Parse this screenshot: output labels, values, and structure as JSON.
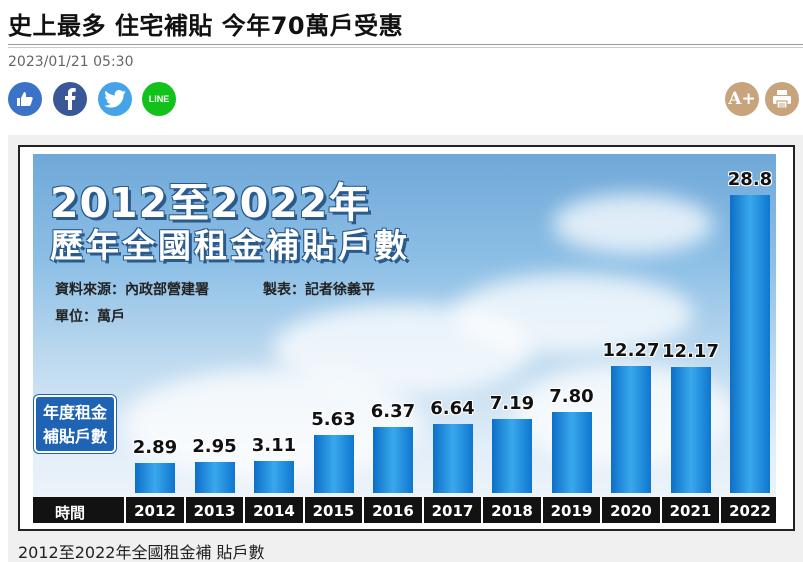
{
  "article": {
    "headline": "史上最多 住宅補貼 今年70萬戶受惠",
    "timestamp": "2023/01/21 05:30",
    "caption": "2012至2022年全國租金補 貼戶數"
  },
  "share": {
    "line_label": "LINE",
    "icons": [
      "like-icon",
      "facebook-icon",
      "twitter-icon",
      "line-icon"
    ]
  },
  "tools": {
    "font_size_label": "A+",
    "icons": [
      "font-size-icon",
      "print-icon"
    ]
  },
  "colors": {
    "share_like": "#3b73c9",
    "share_facebook": "#3a5897",
    "share_twitter": "#45a4e8",
    "share_line": "#13c11b",
    "tool_bg": "#c8a47d",
    "bar": "#1f8fe0"
  },
  "chart_data": {
    "type": "bar",
    "title": "2012至2022年",
    "subtitle": "歷年全國租金補貼戶數",
    "source": "資料來源：內政部營建署",
    "maker": "製表：記者徐義平",
    "unit": "單位：萬戶",
    "legend_line1": "年度租金",
    "legend_line2": "補貼戶數",
    "xlabel": "時間",
    "categories": [
      "2012",
      "2013",
      "2014",
      "2015",
      "2016",
      "2017",
      "2018",
      "2019",
      "2020",
      "2021",
      "2022"
    ],
    "values": [
      2.89,
      2.95,
      3.11,
      5.63,
      6.37,
      6.64,
      7.19,
      7.8,
      12.27,
      12.17,
      28.8
    ],
    "value_labels": [
      "2.89",
      "2.95",
      "3.11",
      "5.63",
      "6.37",
      "6.64",
      "7.19",
      "7.80",
      "12.27",
      "12.17",
      "28.8"
    ],
    "ylim": [
      0,
      28.8
    ]
  }
}
